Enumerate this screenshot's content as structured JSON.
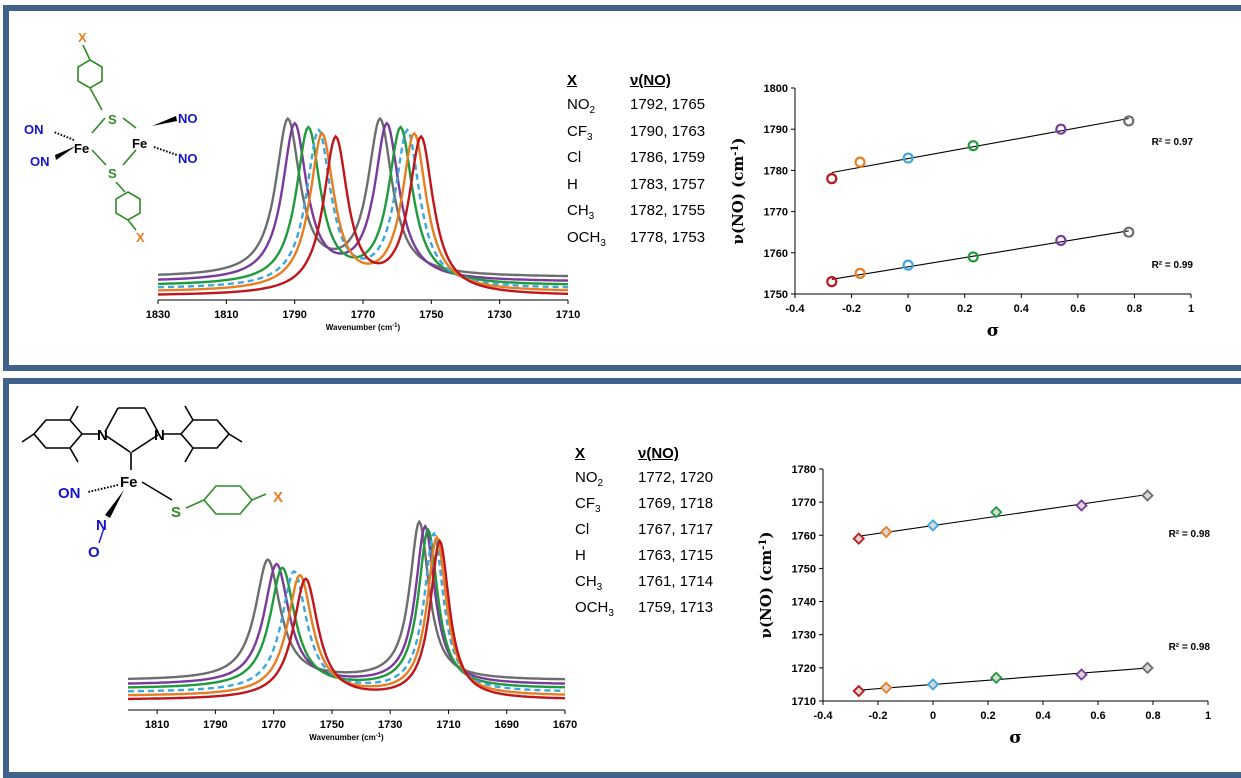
{
  "colors": {
    "frame": "#41628b",
    "NO2": "#6d6d6d",
    "CF3": "#7a3a9c",
    "Cl": "#1f9a3c",
    "H": "#3ba7dd",
    "CH3": "#e67e22",
    "OCH3": "#c0151b",
    "fe": "#000000",
    "ligand_green": "#2e8b27",
    "substituent_x": "#e67e22",
    "nitrosyl_blue": "#1414d2"
  },
  "panel1": {
    "structure": {
      "labels": [
        "X",
        "S",
        "Fe",
        "NO",
        "ON",
        "ON",
        "Fe",
        "NO",
        "S",
        "X"
      ]
    },
    "table": {
      "header_x": "X",
      "header_v": "ν(NO)",
      "rows": [
        {
          "x": "NO",
          "sub": "2",
          "v": "1792, 1765"
        },
        {
          "x": "CF",
          "sub": "3",
          "v": "1790, 1763"
        },
        {
          "x": "Cl",
          "sub": "",
          "v": "1786, 1759"
        },
        {
          "x": "H",
          "sub": "",
          "v": "1783, 1757"
        },
        {
          "x": "CH",
          "sub": "3",
          "v": "1782, 1755"
        },
        {
          "x": "OCH",
          "sub": "3",
          "v": "1778, 1753"
        }
      ]
    },
    "spectrum_chart": {
      "type": "line",
      "xlabel": "Wavenumber (cm-1)",
      "xlim": [
        1830,
        1710
      ],
      "x_ticks": [
        1830,
        1810,
        1790,
        1770,
        1750,
        1730,
        1710
      ],
      "series": [
        {
          "key": "NO2",
          "peaks": [
            1792,
            1765
          ],
          "baseline": 0.12,
          "dash": false
        },
        {
          "key": "CF3",
          "peaks": [
            1790,
            1763
          ],
          "baseline": 0.09,
          "dash": false
        },
        {
          "key": "Cl",
          "peaks": [
            1786,
            1759
          ],
          "baseline": 0.065,
          "dash": false
        },
        {
          "key": "H",
          "peaks": [
            1783,
            1757
          ],
          "baseline": 0.045,
          "dash": true
        },
        {
          "key": "CH3",
          "peaks": [
            1782,
            1755
          ],
          "baseline": 0.025,
          "dash": false
        },
        {
          "key": "OCH3",
          "peaks": [
            1778,
            1753
          ],
          "baseline": 0.0,
          "dash": false
        }
      ]
    },
    "correlation_chart": {
      "type": "scatter",
      "xlabel": "σ",
      "ylabel": "ν(NO) (cm-1)",
      "xlim": [
        -0.4,
        1
      ],
      "ylim": [
        1750,
        1800
      ],
      "x_ticks": [
        "-0.4",
        "-0.2",
        "0",
        "0.2",
        "0.4",
        "0.6",
        "0.8",
        "1"
      ],
      "y_ticks": [
        "1750",
        "1760",
        "1770",
        "1780",
        "1790",
        "1800"
      ],
      "marker": "circle",
      "sigma": [
        -0.27,
        -0.17,
        0.0,
        0.23,
        0.54,
        0.78
      ],
      "point_keys": [
        "OCH3",
        "CH3",
        "H",
        "Cl",
        "CF3",
        "NO2"
      ],
      "series": [
        {
          "name": "high",
          "values": [
            1778,
            1782,
            1783,
            1786,
            1790,
            1792
          ],
          "r2": "R² = 0.97"
        },
        {
          "name": "low",
          "values": [
            1753,
            1755,
            1757,
            1759,
            1763,
            1765
          ],
          "r2": "R² = 0.99"
        }
      ]
    }
  },
  "panel2": {
    "structure": {
      "labels": [
        "N",
        "N",
        "Fe",
        "ON",
        "N",
        "O",
        "S",
        "X"
      ]
    },
    "table": {
      "header_x": "X",
      "header_v": "ν(NO)",
      "rows": [
        {
          "x": "NO",
          "sub": "2",
          "v": "1772, 1720"
        },
        {
          "x": "CF",
          "sub": "3",
          "v": "1769, 1718"
        },
        {
          "x": "Cl",
          "sub": "",
          "v": "1767, 1717"
        },
        {
          "x": "H",
          "sub": "",
          "v": "1763, 1715"
        },
        {
          "x": "CH",
          "sub": "3",
          "v": "1761, 1714"
        },
        {
          "x": "OCH",
          "sub": "3",
          "v": "1759, 1713"
        }
      ]
    },
    "spectrum_chart": {
      "type": "line",
      "xlabel": "Wavenumber (cm-1)",
      "xlim": [
        1820,
        1670
      ],
      "x_ticks": [
        1810,
        1790,
        1770,
        1750,
        1730,
        1710,
        1690,
        1670
      ],
      "series": [
        {
          "key": "NO2",
          "peaks": [
            1772,
            1720
          ],
          "baseline": 0.13,
          "dash": false
        },
        {
          "key": "CF3",
          "peaks": [
            1769,
            1718
          ],
          "baseline": 0.1,
          "dash": false
        },
        {
          "key": "Cl",
          "peaks": [
            1767,
            1717
          ],
          "baseline": 0.075,
          "dash": false
        },
        {
          "key": "H",
          "peaks": [
            1763,
            1715
          ],
          "baseline": 0.05,
          "dash": true
        },
        {
          "key": "CH3",
          "peaks": [
            1761,
            1714
          ],
          "baseline": 0.025,
          "dash": false
        },
        {
          "key": "OCH3",
          "peaks": [
            1759,
            1713
          ],
          "baseline": 0.0,
          "dash": false
        }
      ]
    },
    "correlation_chart": {
      "type": "scatter",
      "xlabel": "σ",
      "ylabel": "ν(NO) (cm-1)",
      "xlim": [
        -0.4,
        1
      ],
      "ylim": [
        1710,
        1780
      ],
      "x_ticks": [
        "-0.4",
        "-0.2",
        "0",
        "0.2",
        "0.4",
        "0.6",
        "0.8",
        "1"
      ],
      "y_ticks": [
        "1710",
        "1720",
        "1730",
        "1740",
        "1750",
        "1760",
        "1770",
        "1780"
      ],
      "marker": "diamond",
      "sigma": [
        -0.27,
        -0.17,
        0.0,
        0.23,
        0.54,
        0.78
      ],
      "point_keys": [
        "OCH3",
        "CH3",
        "H",
        "Cl",
        "CF3",
        "NO2"
      ],
      "series": [
        {
          "name": "high",
          "values": [
            1759,
            1761,
            1763,
            1767,
            1769,
            1772
          ],
          "r2": "R² = 0.98"
        },
        {
          "name": "low",
          "values": [
            1713,
            1714,
            1715,
            1717,
            1718,
            1720
          ],
          "r2": "R² = 0.98"
        }
      ]
    }
  }
}
